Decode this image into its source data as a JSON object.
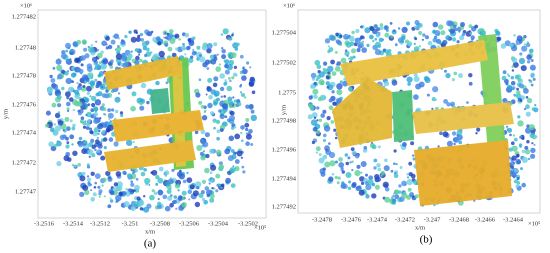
{
  "panels": [
    {
      "y_exponent": "×10⁶",
      "y_ticks": [
        "1.277482",
        "1.27748",
        "1.277478",
        "1.277476",
        "1.277474",
        "1.277472",
        "1.27747"
      ],
      "y_label": "y/m",
      "x_ticks": [
        "-3.2516",
        "-3.2514",
        "-3.2512",
        "-3.251",
        "-3.2508",
        "-3.2506",
        "-3.2504",
        "-3.2502"
      ],
      "x_label": "x/m",
      "x_exponent": "×10⁵",
      "caption": "(a)"
    },
    {
      "y_exponent": "×10⁶",
      "y_ticks": [
        "1.277504",
        "1.277502",
        "1.2775",
        "1.277498",
        "1.277496",
        "1.277494",
        "1.277492"
      ],
      "y_label": "y/m",
      "x_ticks": [
        "-3.2478",
        "-3.2476",
        "-3.2474",
        "-3.2472",
        "-3.247",
        "-3.2468",
        "-3.2466",
        "-3.2464"
      ],
      "x_label": "x/m",
      "x_exponent": "×10⁵",
      "caption": "(b)"
    }
  ]
}
